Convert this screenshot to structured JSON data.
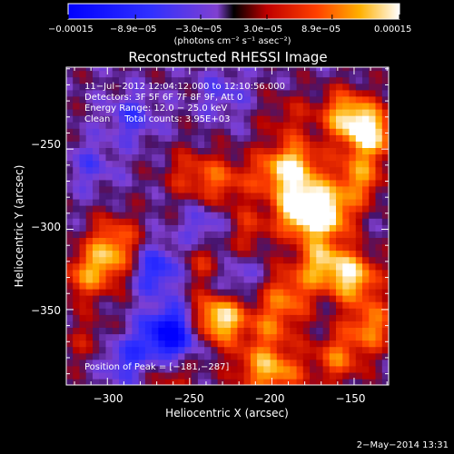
{
  "chart_data": {
    "type": "heatmap",
    "title": "Reconstructed RHESSI Image",
    "xlabel": "Heliocentric X (arcsec)",
    "ylabel": "Heliocentric Y (arcsec)",
    "xlim": [
      -325,
      -129
    ],
    "ylim": [
      -397,
      -199
    ],
    "x_ticks": [
      -300,
      -250,
      -200,
      -150
    ],
    "x_tick_labels": [
      "−300",
      "−250",
      "−200",
      "−150"
    ],
    "y_ticks": [
      -350,
      -300,
      -250
    ],
    "y_tick_labels": [
      "−350",
      "−300",
      "−250"
    ],
    "colorbar": {
      "min": -0.00015,
      "max": 0.00015,
      "ticks": [
        -0.00015,
        -8.9e-05,
        -3e-05,
        3e-05,
        8.9e-05,
        0.00015
      ],
      "tick_labels": [
        "−0.00015",
        "−8.9e−05",
        "−3.0e−05",
        "3.0e−05",
        "8.9e−05",
        "0.00015"
      ],
      "unit_label": "(photons cm⁻² s⁻¹ asec⁻²)"
    },
    "annotations": [
      "11−Jul−2012 12:04:12.000 to 12:10:56.000",
      "Detectors: 3F 5F 6F 7F 8F 9F, Att 0",
      "Energy Range: 12.0 − 25.0 keV",
      "Clean     Total counts: 3.95E+03"
    ],
    "peak_label": "Position of Peak = [−181,−287]",
    "peak": [
      -181,
      -287
    ],
    "timestamp": "2−May−2014 13:31",
    "blobs": [
      {
        "x": -140,
        "y": -240,
        "a": 1.0
      },
      {
        "x": -155,
        "y": -228,
        "a": 0.8
      },
      {
        "x": -148,
        "y": -268,
        "a": 0.7
      },
      {
        "x": -181,
        "y": -287,
        "a": 1.3
      },
      {
        "x": -185,
        "y": -260,
        "a": 0.8
      },
      {
        "x": -165,
        "y": -290,
        "a": 0.8
      },
      {
        "x": -200,
        "y": -265,
        "a": 0.5
      },
      {
        "x": -230,
        "y": -270,
        "a": 0.5
      },
      {
        "x": -250,
        "y": -265,
        "a": 0.4
      },
      {
        "x": -170,
        "y": -320,
        "a": 0.8
      },
      {
        "x": -150,
        "y": -330,
        "a": 0.9
      },
      {
        "x": -140,
        "y": -360,
        "a": 0.7
      },
      {
        "x": -160,
        "y": -380,
        "a": 0.6
      },
      {
        "x": -190,
        "y": -340,
        "a": 0.6
      },
      {
        "x": -200,
        "y": -360,
        "a": 0.5
      },
      {
        "x": -232,
        "y": -355,
        "a": 1.1
      },
      {
        "x": -240,
        "y": -320,
        "a": 0.5
      },
      {
        "x": -300,
        "y": -320,
        "a": 0.6
      },
      {
        "x": -295,
        "y": -305,
        "a": 0.5
      },
      {
        "x": -315,
        "y": -330,
        "a": 0.5
      },
      {
        "x": -260,
        "y": -392,
        "a": 0.3
      },
      {
        "x": -195,
        "y": -390,
        "a": 0.6
      },
      {
        "x": -210,
        "y": -385,
        "a": 0.5
      },
      {
        "x": -310,
        "y": -370,
        "a": 0.3
      },
      {
        "x": -215,
        "y": -300,
        "a": 0.4
      },
      {
        "x": -190,
        "y": -230,
        "a": 0.3
      },
      {
        "x": -310,
        "y": -260,
        "a": -0.3
      },
      {
        "x": -270,
        "y": -325,
        "a": -0.6
      },
      {
        "x": -262,
        "y": -365,
        "a": -1.1
      },
      {
        "x": -240,
        "y": -300,
        "a": -0.4
      },
      {
        "x": -230,
        "y": -215,
        "a": -0.3
      },
      {
        "x": -285,
        "y": -230,
        "a": -0.4
      },
      {
        "x": -225,
        "y": -330,
        "a": -0.4
      },
      {
        "x": -290,
        "y": -380,
        "a": -0.5
      }
    ],
    "grid": false
  }
}
